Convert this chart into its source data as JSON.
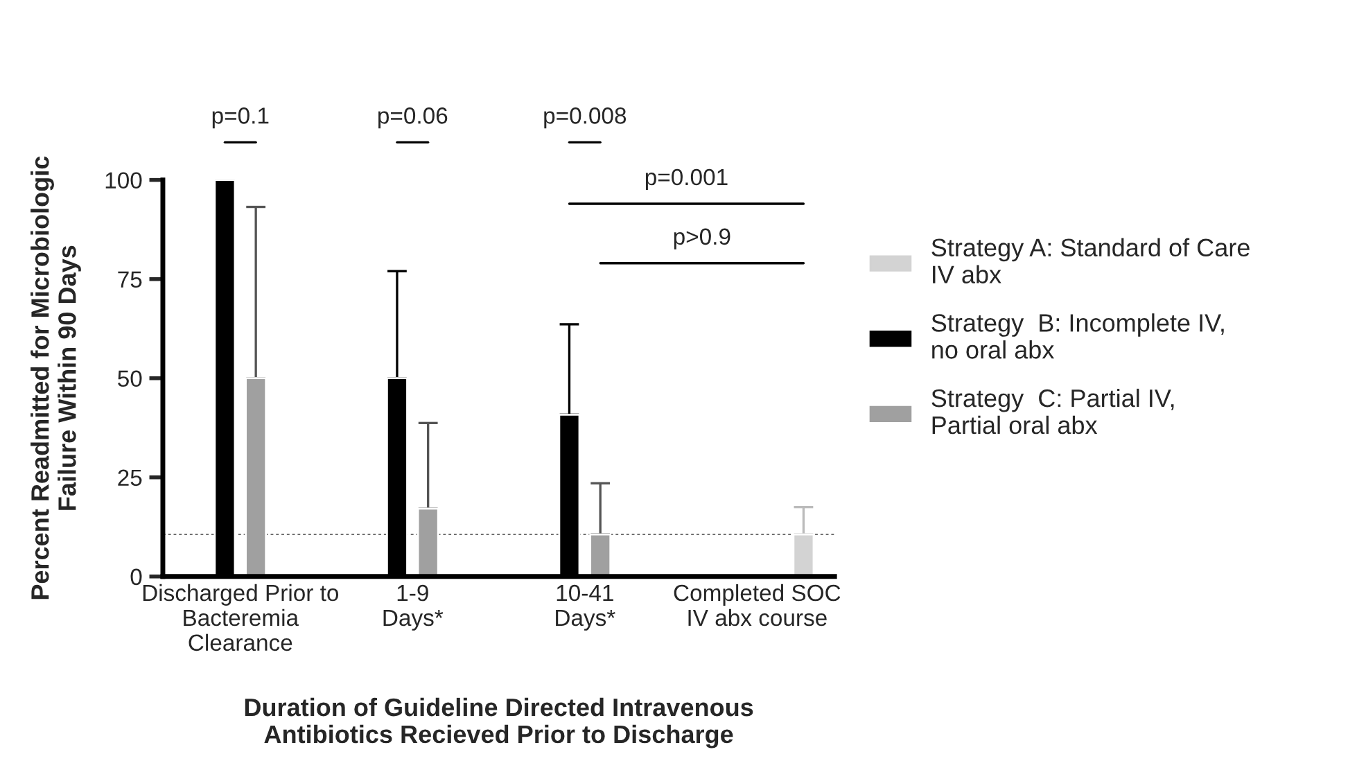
{
  "chart_data": {
    "type": "bar",
    "xlabel": "Duration of Guideline Directed Intravenous\nAntibiotics Recieved Prior to Discharge",
    "ylabel": "Percent Readmitted for Microbiologic\nFailure Within 90 Days",
    "categories": [
      "Discharged Prior to\nBacteremia\nClearance",
      "1-9\nDays*",
      "10-41\nDays*",
      "Completed SOC\nIV abx course"
    ],
    "series": [
      {
        "name": "Strategy A: Standard of Care\nIV abx",
        "color": "#d3d3d3",
        "values": [
          null,
          null,
          null,
          10.6
        ],
        "errors": [
          null,
          null,
          null,
          [
            10.6,
            17.5
          ]
        ]
      },
      {
        "name": "Strategy  B: Incomplete IV,\nno oral abx",
        "color": "#000000",
        "values": [
          100,
          50,
          40.8,
          null
        ],
        "errors": [
          null,
          [
            50,
            77
          ],
          [
            40.8,
            63.6
          ],
          null
        ]
      },
      {
        "name": "Strategy  C: Partial IV,\nPartial oral abx",
        "color": "#a0a0a0",
        "values": [
          50,
          17.1,
          10.6,
          null
        ],
        "errors": [
          [
            50,
            93.2
          ],
          [
            17.1,
            38.7
          ],
          [
            10.6,
            23.5
          ],
          null
        ]
      }
    ],
    "ylim": [
      0,
      100
    ],
    "yticks": [
      0,
      25,
      50,
      75,
      100
    ],
    "ref_lines": [
      {
        "axis": "y",
        "value": 10.6,
        "color": "#666666",
        "line_style": "dotted"
      }
    ],
    "annotations": [
      "p=0.1",
      "p=0.06",
      "p=0.008",
      "p=0.001",
      "p>0.9"
    ],
    "grid": false,
    "legend": "right"
  }
}
